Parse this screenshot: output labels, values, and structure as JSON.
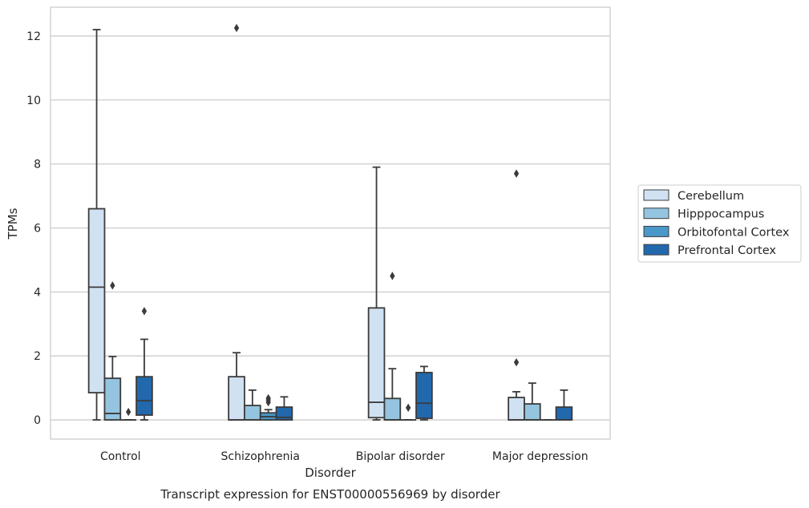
{
  "chart_data": {
    "type": "box",
    "title": "Transcript expression for ENST00000556969 by disorder",
    "xlabel": "Disorder",
    "ylabel": "TPMs",
    "categories": [
      "Control",
      "Schizophrenia",
      "Bipolar disorder",
      "Major depression"
    ],
    "ylim": [
      -0.6,
      12.9
    ],
    "yticks": [
      0,
      2,
      4,
      6,
      8,
      10,
      12
    ],
    "grid": true,
    "legend_position": "right",
    "series": [
      {
        "name": "Cerebellum",
        "color": "#d0e1f2",
        "boxes": [
          {
            "min": 0.0,
            "q1": 0.85,
            "median": 4.15,
            "q3": 6.6,
            "max": 12.2,
            "outliers": []
          },
          {
            "min": 0.0,
            "q1": 0.0,
            "median": 0.0,
            "q3": 1.35,
            "max": 2.1,
            "outliers": [
              12.25
            ]
          },
          {
            "min": 0.0,
            "q1": 0.07,
            "median": 0.55,
            "q3": 3.5,
            "max": 7.9,
            "outliers": []
          },
          {
            "min": 0.0,
            "q1": 0.0,
            "median": 0.0,
            "q3": 0.7,
            "max": 0.88,
            "outliers": [
              7.7,
              1.8
            ]
          }
        ]
      },
      {
        "name": "Hipppocampus",
        "color": "#94c4df",
        "boxes": [
          {
            "min": 0.0,
            "q1": 0.0,
            "median": 0.2,
            "q3": 1.3,
            "max": 1.98,
            "outliers": [
              4.2
            ]
          },
          {
            "min": 0.0,
            "q1": 0.0,
            "median": 0.0,
            "q3": 0.45,
            "max": 0.93,
            "outliers": []
          },
          {
            "min": 0.0,
            "q1": 0.0,
            "median": 0.0,
            "q3": 0.67,
            "max": 1.6,
            "outliers": [
              4.5
            ]
          },
          {
            "min": 0.0,
            "q1": 0.0,
            "median": 0.0,
            "q3": 0.5,
            "max": 1.15,
            "outliers": []
          }
        ]
      },
      {
        "name": "Orbitofontal Cortex",
        "color": "#4a98c9",
        "boxes": [
          {
            "min": 0.0,
            "q1": 0.0,
            "median": 0.0,
            "q3": 0.0,
            "max": 0.0,
            "outliers": [
              0.25
            ]
          },
          {
            "min": 0.0,
            "q1": 0.0,
            "median": 0.1,
            "q3": 0.22,
            "max": 0.32,
            "outliers": [
              0.55,
              0.62,
              0.68
            ]
          },
          {
            "min": 0.0,
            "q1": 0.0,
            "median": 0.0,
            "q3": 0.0,
            "max": 0.0,
            "outliers": [
              0.38
            ]
          },
          {
            "min": 0.0,
            "q1": 0.0,
            "median": 0.0,
            "q3": 0.0,
            "max": 0.0,
            "outliers": []
          }
        ]
      },
      {
        "name": "Prefrontal Cortex",
        "color": "#2268ad",
        "boxes": [
          {
            "min": 0.0,
            "q1": 0.15,
            "median": 0.6,
            "q3": 1.35,
            "max": 2.52,
            "outliers": [
              3.4
            ]
          },
          {
            "min": 0.0,
            "q1": 0.0,
            "median": 0.08,
            "q3": 0.4,
            "max": 0.72,
            "outliers": []
          },
          {
            "min": 0.0,
            "q1": 0.05,
            "median": 0.52,
            "q3": 1.48,
            "max": 1.67,
            "outliers": []
          },
          {
            "min": 0.0,
            "q1": 0.0,
            "median": 0.0,
            "q3": 0.4,
            "max": 0.93,
            "outliers": []
          }
        ]
      }
    ]
  }
}
